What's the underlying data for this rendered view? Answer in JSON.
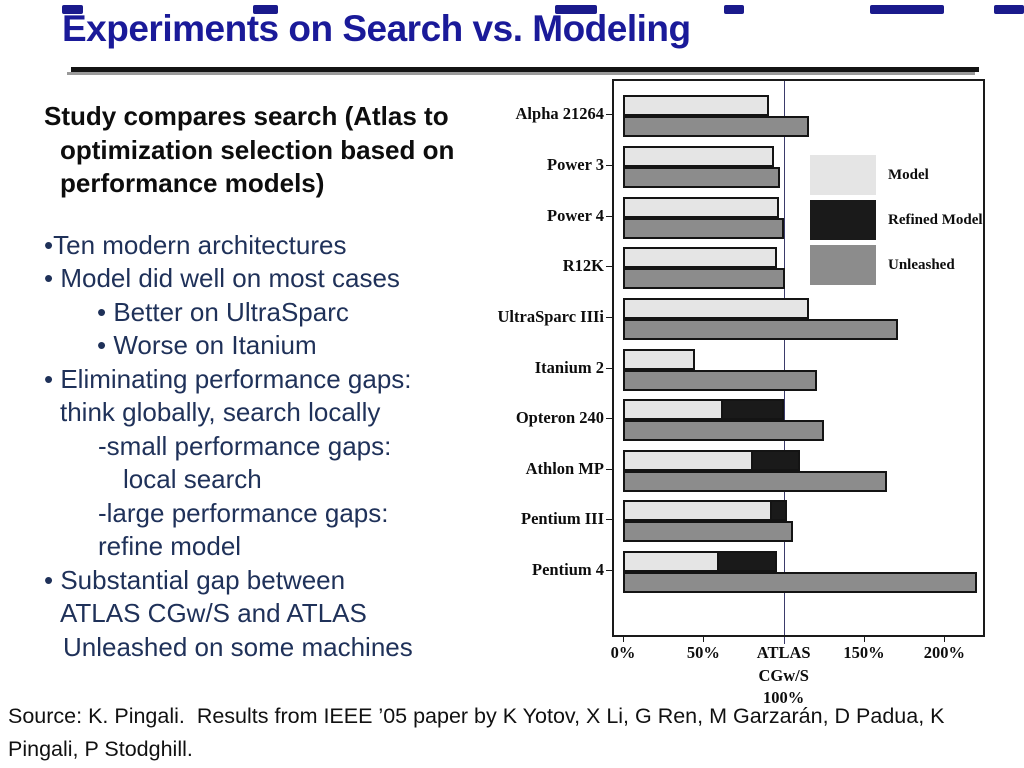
{
  "slide": {
    "title": "Experiments on Search vs. Modeling",
    "source": "Source: K. Pingali.  Results from IEEE ’05 paper by K Yotov, X Li, G Ren, M Garzarán, D Padua, K Pingali, P Stodghill.",
    "title_color": "#1a1a99",
    "body_color": "#1f3159"
  },
  "body_lines": [
    {
      "text": "Study compares search (Atlas to",
      "x": 0,
      "style": "heading"
    },
    {
      "text": "optimization selection based on",
      "x": 16,
      "style": "heading"
    },
    {
      "text": "performance models)",
      "x": 16,
      "style": "heading"
    },
    {
      "text": "",
      "x": 0,
      "style": "spacer"
    },
    {
      "text": "•Ten modern architectures",
      "x": 0,
      "style": "bullet"
    },
    {
      "text": "• Model did well on most cases",
      "x": 0,
      "style": "bullet"
    },
    {
      "text": "• Better on UltraSparc",
      "x": 53,
      "style": "bullet"
    },
    {
      "text": "• Worse on Itanium",
      "x": 53,
      "style": "bullet"
    },
    {
      "text": "• Eliminating performance gaps:",
      "x": 0,
      "style": "bullet"
    },
    {
      "text": "think globally, search locally",
      "x": 16,
      "style": "bullet"
    },
    {
      "text": "-small performance gaps:",
      "x": 54,
      "style": "bullet"
    },
    {
      "text": "local search",
      "x": 79,
      "style": "bullet"
    },
    {
      "text": "-large performance gaps:",
      "x": 54,
      "style": "bullet"
    },
    {
      "text": "refine model",
      "x": 54,
      "style": "bullet"
    },
    {
      "text": "• Substantial gap between",
      "x": 0,
      "style": "bullet"
    },
    {
      "text": "ATLAS CGw/S and ATLAS",
      "x": 16,
      "style": "bullet"
    },
    {
      "text": "Unleashed on some machines",
      "x": 19,
      "style": "bullet"
    }
  ],
  "chart_data": {
    "type": "bar",
    "orientation": "horizontal",
    "unit": "percent of ATLAS CGw/S performance (100% = ATLAS CGw/S)",
    "categories": [
      "Alpha 21264",
      "Power 3",
      "Power 4",
      "R12K",
      "UltraSparc IIIi",
      "Itanium 2",
      "Opteron 240",
      "Athlon MP",
      "Pentium III",
      "Pentium 4"
    ],
    "series": [
      {
        "name": "Model",
        "color": "#e5e5e5",
        "values": [
          91,
          94,
          97,
          96,
          116,
          45,
          62,
          81,
          93,
          60
        ]
      },
      {
        "name": "Refined Model",
        "color": "#1a1a1a",
        "values": [
          null,
          null,
          null,
          null,
          null,
          null,
          100,
          110,
          102,
          96
        ]
      },
      {
        "name": "Unleashed",
        "color": "#8c8c8c",
        "values": [
          116,
          98,
          100,
          101,
          171,
          121,
          125,
          164,
          106,
          220
        ]
      }
    ],
    "x_axis": {
      "max": 225,
      "reference_line": 100,
      "ticks": [
        {
          "value": 0,
          "label": "0%"
        },
        {
          "value": 50,
          "label": "50%"
        },
        {
          "value": 100,
          "label": "ATLAS\nCGw/S\n100%"
        },
        {
          "value": 150,
          "label": "150%"
        },
        {
          "value": 200,
          "label": "200%"
        }
      ]
    },
    "legend": [
      {
        "label": "Model",
        "color": "#e5e5e5"
      },
      {
        "label": "Refined Model",
        "color": "#1a1a1a"
      },
      {
        "label": "Unleashed",
        "color": "#8c8c8c"
      }
    ],
    "legend_position": "inside-right",
    "grid": false
  },
  "decor": {
    "top_dashes": [
      {
        "x": 62,
        "w": 21
      },
      {
        "x": 253,
        "w": 25
      },
      {
        "x": 555,
        "w": 42
      },
      {
        "x": 724,
        "w": 20
      },
      {
        "x": 870,
        "w": 74
      },
      {
        "x": 994,
        "w": 30
      }
    ]
  }
}
